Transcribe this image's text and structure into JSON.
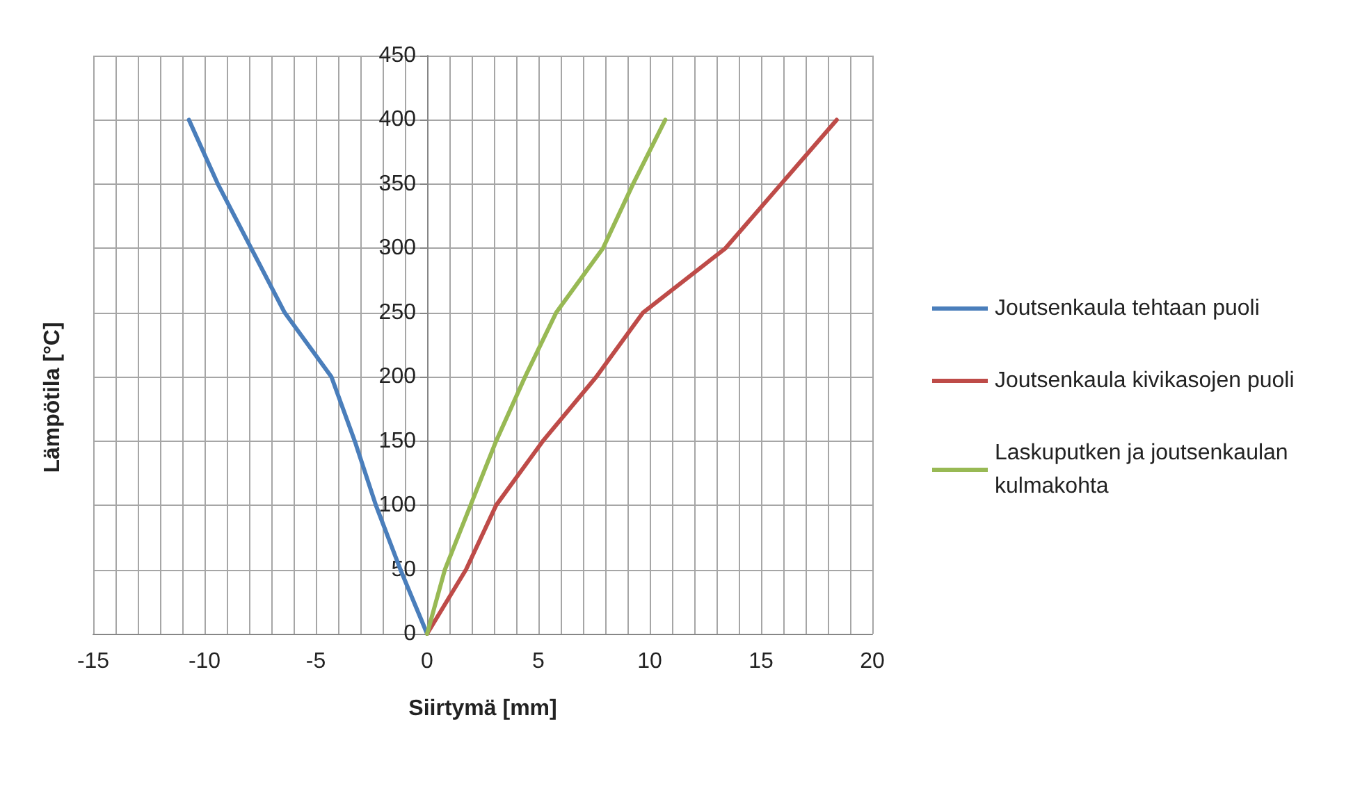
{
  "chart_data": {
    "type": "line",
    "xlabel": "Siirtymä [mm]",
    "ylabel": "Lämpötila [°C]",
    "series": [
      {
        "name": "Joutsenkaula tehtaan puoli",
        "color": "#4a7ebb",
        "x": [
          0,
          -1.2,
          -2.3,
          -3.25,
          -4.3,
          -6.4,
          -7.9,
          -9.4,
          -10.7
        ],
        "values": [
          0,
          50,
          100,
          150,
          200,
          250,
          300,
          350,
          400
        ]
      },
      {
        "name": "Joutsenkaula kivikasojen puoli",
        "color": "#be4b48",
        "x": [
          0,
          1.75,
          3.1,
          5.2,
          7.6,
          9.7,
          13.4,
          15.9,
          18.4
        ],
        "values": [
          0,
          50,
          100,
          150,
          200,
          250,
          300,
          350,
          400
        ]
      },
      {
        "name": "Laskuputken ja joutsenkaulan kulmakohta",
        "color": "#98b954",
        "x": [
          0,
          0.8,
          1.95,
          3.1,
          4.4,
          5.8,
          7.9,
          9.25,
          10.7
        ],
        "values": [
          0,
          50,
          100,
          150,
          200,
          250,
          300,
          350,
          400
        ]
      }
    ],
    "xlim": [
      -15,
      20
    ],
    "xticks": [
      -15,
      {
        "value": -14,
        "label": null
      },
      {
        "value": -13,
        "label": null
      },
      {
        "value": -12,
        "label": null
      },
      {
        "value": -11,
        "label": null
      },
      -10,
      {
        "value": -9,
        "label": null
      },
      {
        "value": -8,
        "label": null
      },
      {
        "value": -7,
        "label": null
      },
      {
        "value": -6,
        "label": null
      },
      -5,
      {
        "value": -4,
        "label": null
      },
      {
        "value": -3,
        "label": null
      },
      {
        "value": -2,
        "label": null
      },
      {
        "value": -1,
        "label": null
      },
      0,
      {
        "value": 1,
        "label": null
      },
      {
        "value": 2,
        "label": null
      },
      {
        "value": 3,
        "label": null
      },
      {
        "value": 4,
        "label": null
      },
      5,
      {
        "value": 6,
        "label": null
      },
      {
        "value": 7,
        "label": null
      },
      {
        "value": 8,
        "label": null
      },
      {
        "value": 9,
        "label": null
      },
      10,
      {
        "value": 11,
        "label": null
      },
      {
        "value": 12,
        "label": null
      },
      {
        "value": 13,
        "label": null
      },
      {
        "value": 14,
        "label": null
      },
      15,
      {
        "value": 16,
        "label": null
      },
      {
        "value": 17,
        "label": null
      },
      {
        "value": 18,
        "label": null
      },
      {
        "value": 19,
        "label": null
      },
      20
    ],
    "ylim": [
      0,
      450
    ],
    "yticks": [
      0,
      50,
      100,
      150,
      200,
      250,
      300,
      350,
      400,
      450
    ],
    "grid": true,
    "legend": "right",
    "marker": "none",
    "line_style": "solid"
  }
}
